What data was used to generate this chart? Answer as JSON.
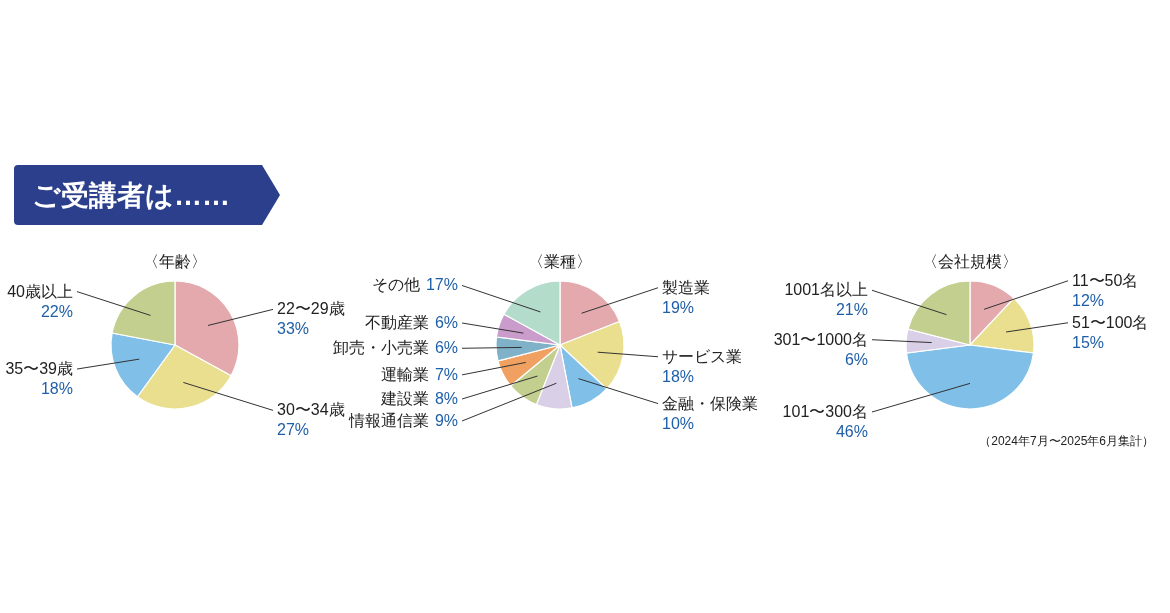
{
  "chart_data": [
    {
      "type": "other",
      "title": "ご受講者は……"
    },
    {
      "type": "pie",
      "title": "〈年齢〉",
      "categories": [
        "22〜29歳",
        "30〜34歳",
        "35〜39歳",
        "40歳以上"
      ],
      "values": [
        33,
        27,
        18,
        22
      ],
      "value_labels": [
        "33%",
        "27%",
        "18%",
        "22%"
      ],
      "colors": [
        "#e4a9ad",
        "#e9df8e",
        "#7fbfe8",
        "#c2cf8e"
      ]
    },
    {
      "type": "pie",
      "title": "〈業種〉",
      "categories": [
        "製造業",
        "サービス業",
        "金融・保険業",
        "情報通信業",
        "建設業",
        "運輸業",
        "卸売・小売業",
        "不動産業",
        "その他"
      ],
      "values": [
        19,
        18,
        10,
        9,
        8,
        7,
        6,
        6,
        17
      ],
      "value_labels": [
        "19%",
        "18%",
        "10%",
        "9%",
        "8%",
        "7%",
        "6%",
        "6%",
        "17%"
      ],
      "colors": [
        "#e4a9ad",
        "#e9df8e",
        "#7fbfe8",
        "#d9cfe6",
        "#c2cf8e",
        "#f0a060",
        "#7fb2c9",
        "#c99ccb",
        "#b3dccb"
      ]
    },
    {
      "type": "pie",
      "title": "〈会社規模〉",
      "categories": [
        "11〜50名",
        "51〜100名",
        "101〜300名",
        "301〜1000名",
        "1001名以上"
      ],
      "values": [
        12,
        15,
        46,
        6,
        21
      ],
      "value_labels": [
        "12%",
        "15%",
        "46%",
        "6%",
        "21%"
      ],
      "colors": [
        "#e4a9ad",
        "#e9df8e",
        "#7fbfe8",
        "#d9cfe6",
        "#c2cf8e"
      ],
      "annotations": [
        "（2024年7月〜2025年6月集計）"
      ]
    }
  ]
}
